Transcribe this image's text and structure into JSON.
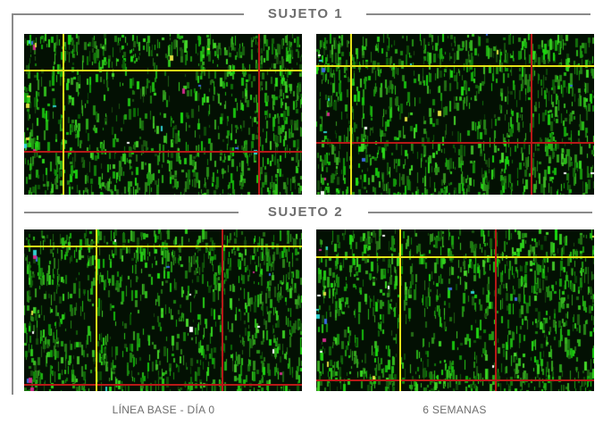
{
  "sections": [
    {
      "title": "SUJETO 1"
    },
    {
      "title": "SUJETO 2"
    }
  ],
  "captions": {
    "left": "LÍNEA BASE - DÍA 0",
    "right": "6 SEMANAS"
  },
  "colors": {
    "frame": "#8a8a8a",
    "text": "#6e6e6e",
    "grid_yellow": "#e6e218",
    "grid_red": "#b81818",
    "scan_green": "#1fa82a",
    "background": "#041404"
  }
}
